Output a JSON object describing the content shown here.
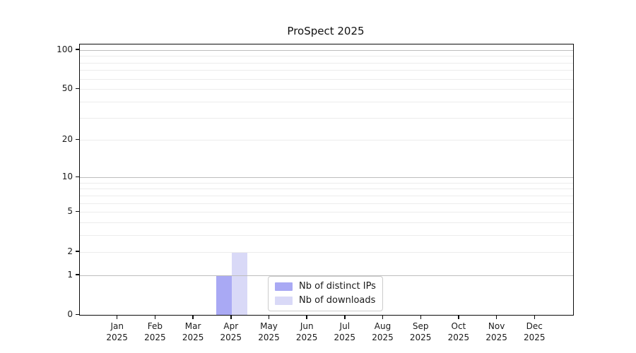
{
  "chart_data": {
    "type": "bar",
    "title": "ProSpect 2025",
    "categories": [],
    "x_tick_labels": [
      {
        "month": "Jan",
        "year": "2025"
      },
      {
        "month": "Feb",
        "year": "2025"
      },
      {
        "month": "Mar",
        "year": "2025"
      },
      {
        "month": "Apr",
        "year": "2025"
      },
      {
        "month": "May",
        "year": "2025"
      },
      {
        "month": "Jun",
        "year": "2025"
      },
      {
        "month": "Jul",
        "year": "2025"
      },
      {
        "month": "Aug",
        "year": "2025"
      },
      {
        "month": "Sep",
        "year": "2025"
      },
      {
        "month": "Oct",
        "year": "2025"
      },
      {
        "month": "Nov",
        "year": "2025"
      },
      {
        "month": "Dec",
        "year": "2025"
      }
    ],
    "series": [
      {
        "name": "Nb of distinct IPs",
        "color": "#a9a9f4",
        "values": [
          0,
          0,
          0,
          1,
          0,
          0,
          0,
          0,
          0,
          0,
          0,
          0
        ]
      },
      {
        "name": "Nb of downloads",
        "color": "#d9d9f7",
        "values": [
          0,
          0,
          0,
          2,
          0,
          0,
          0,
          0,
          0,
          0,
          0,
          0
        ]
      }
    ],
    "y_axis": {
      "scale": "log1p",
      "lim": [
        0,
        110
      ],
      "tick_values": [
        0,
        1,
        2,
        5,
        10,
        20,
        50,
        100
      ],
      "tick_labels": [
        "0",
        "1",
        "2",
        "5",
        "10",
        "20",
        "50",
        "100"
      ],
      "major_gridlines": [
        1,
        10,
        100
      ],
      "minor_gridlines": [
        2,
        3,
        4,
        5,
        6,
        7,
        8,
        9,
        20,
        30,
        40,
        50,
        60,
        70,
        80,
        90
      ]
    },
    "legend": {
      "entries": [
        "Nb of distinct IPs",
        "Nb of downloads"
      ],
      "location": "inside lower center"
    },
    "colors": {
      "major_grid": "#bdbdbd",
      "minor_grid": "#ececec",
      "spine": "#0c0c0c",
      "text": "#1a1a1a"
    }
  }
}
